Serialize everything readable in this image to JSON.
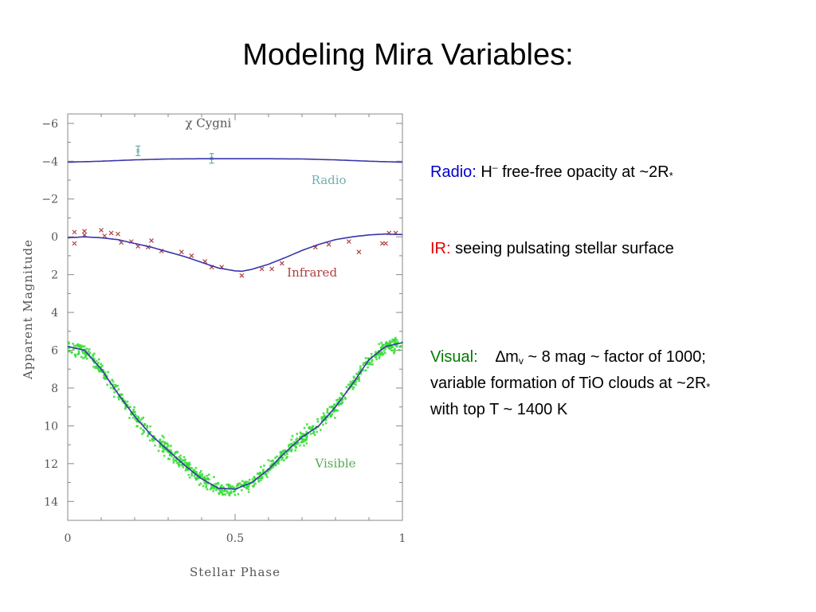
{
  "slide": {
    "title": "Modeling Mira Variables:"
  },
  "notes": {
    "radio": {
      "label": "Radio:",
      "label_color": "#0000cc",
      "text_pre": "H",
      "text_sup": "–",
      "text_mid": " free-free opacity at ~2R",
      "text_star": "*"
    },
    "ir": {
      "label": "IR:",
      "label_color": "#e00000",
      "text": "seeing pulsating stellar surface"
    },
    "visual": {
      "label": "Visual:",
      "label_color": "#007a00",
      "delta": "∆m",
      "delta_sub": "v",
      "line1_rest": " ~ 8 mag ~ factor of 1000;",
      "line2_pre": "variable formation of TiO clouds at ~2R",
      "line2_star": "*",
      "line3": "with top T ~ 1400 K"
    }
  },
  "chart_data": {
    "type": "scatter",
    "title": "χ Cygni",
    "xlabel": "Stellar Phase",
    "ylabel": "Apparent Magnitude",
    "xlim": [
      0,
      1
    ],
    "ylim": [
      15,
      -6.5
    ],
    "y_inverted": true,
    "x_ticks": [
      0,
      0.5,
      1
    ],
    "x_tick_labels": [
      "0",
      "0.5",
      "1"
    ],
    "y_ticks": [
      -6,
      -4,
      -2,
      0,
      2,
      4,
      6,
      8,
      10,
      12,
      14
    ],
    "y_tick_labels": [
      "−6",
      "−4",
      "−2",
      "0",
      "2",
      "4",
      "6",
      "8",
      "10",
      "12",
      "14"
    ],
    "model_color": "#3a35a8",
    "series": [
      {
        "name": "Radio",
        "color": "#6fb0b0",
        "marker": "errorbar",
        "points": [
          [
            0.21,
            -4.55
          ],
          [
            0.43,
            -4.15
          ]
        ],
        "model": {
          "x": [
            0,
            0.1,
            0.2,
            0.3,
            0.4,
            0.5,
            0.6,
            0.7,
            0.8,
            0.9,
            1.0
          ],
          "y": [
            -3.95,
            -4.0,
            -4.07,
            -4.12,
            -4.13,
            -4.13,
            -4.13,
            -4.12,
            -4.07,
            -4.0,
            -3.95
          ]
        }
      },
      {
        "name": "Infrared",
        "color": "#b04040",
        "marker": "cross",
        "points": [
          [
            0.02,
            -0.25
          ],
          [
            0.02,
            0.35
          ],
          [
            0.05,
            -0.1
          ],
          [
            0.05,
            -0.3
          ],
          [
            0.1,
            -0.35
          ],
          [
            0.11,
            -0.05
          ],
          [
            0.13,
            -0.2
          ],
          [
            0.15,
            -0.15
          ],
          [
            0.16,
            0.3
          ],
          [
            0.19,
            0.25
          ],
          [
            0.21,
            0.5
          ],
          [
            0.24,
            0.55
          ],
          [
            0.25,
            0.2
          ],
          [
            0.28,
            0.75
          ],
          [
            0.34,
            0.8
          ],
          [
            0.37,
            1.0
          ],
          [
            0.41,
            1.3
          ],
          [
            0.43,
            1.6
          ],
          [
            0.46,
            1.6
          ],
          [
            0.52,
            2.05
          ],
          [
            0.58,
            1.7
          ],
          [
            0.61,
            1.7
          ],
          [
            0.64,
            1.4
          ],
          [
            0.74,
            0.55
          ],
          [
            0.78,
            0.4
          ],
          [
            0.84,
            0.25
          ],
          [
            0.87,
            0.8
          ],
          [
            0.94,
            0.35
          ],
          [
            0.95,
            0.35
          ],
          [
            0.96,
            -0.2
          ],
          [
            0.98,
            -0.2
          ]
        ],
        "model": {
          "x": [
            0,
            0.05,
            0.1,
            0.15,
            0.2,
            0.25,
            0.3,
            0.35,
            0.4,
            0.45,
            0.5,
            0.52,
            0.55,
            0.6,
            0.65,
            0.7,
            0.75,
            0.8,
            0.85,
            0.9,
            0.95,
            1.0
          ],
          "y": [
            0.05,
            0.0,
            0.05,
            0.15,
            0.35,
            0.55,
            0.8,
            1.05,
            1.35,
            1.65,
            1.8,
            1.82,
            1.72,
            1.45,
            1.1,
            0.72,
            0.4,
            0.15,
            0.0,
            -0.1,
            -0.15,
            -0.12
          ]
        }
      },
      {
        "name": "Visible",
        "color": "#33dd33",
        "marker": "dots",
        "points_summary": "dense band of observations following the model curve with ±0.4 mag scatter",
        "model": {
          "x": [
            0,
            0.05,
            0.1,
            0.15,
            0.2,
            0.25,
            0.3,
            0.35,
            0.4,
            0.45,
            0.5,
            0.55,
            0.6,
            0.65,
            0.7,
            0.75,
            0.8,
            0.85,
            0.9,
            0.95,
            1.0
          ],
          "y": [
            5.8,
            6.0,
            7.0,
            8.3,
            9.5,
            10.5,
            11.3,
            12.1,
            12.8,
            13.3,
            13.35,
            13.0,
            12.3,
            11.4,
            10.6,
            10.0,
            9.0,
            7.8,
            6.5,
            5.8,
            5.6
          ]
        }
      }
    ]
  }
}
